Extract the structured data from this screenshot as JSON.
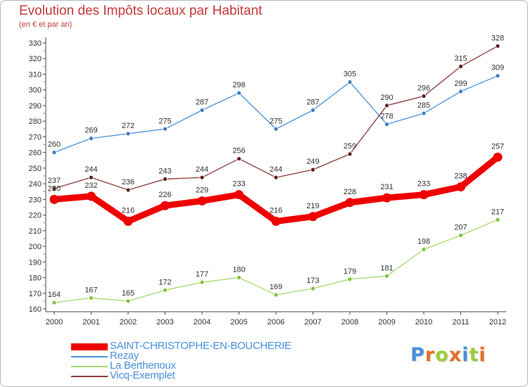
{
  "header": {
    "title": "Evolution des Impôts locaux par Habitant",
    "subtitle": "(en € et par an)"
  },
  "brand": {
    "letters": [
      "P",
      "r",
      "o",
      "x",
      "i",
      "t",
      "i"
    ],
    "colors": [
      "#4a8fd4",
      "#e8702a",
      "#9ccf3a",
      "#e8702a",
      "#4a8fd4",
      "#9ccf3a",
      "#e8702a"
    ]
  },
  "chart_data": {
    "type": "line",
    "title": "Evolution des Impôts locaux par Habitant",
    "subtitle": "(en € et par an)",
    "xlabel": "",
    "ylabel": "",
    "x": [
      "2000",
      "2001",
      "2002",
      "2003",
      "2004",
      "2005",
      "2006",
      "2007",
      "2008",
      "2009",
      "2010",
      "2011",
      "2012"
    ],
    "ylim": [
      160,
      330
    ],
    "yticks": [
      160,
      170,
      180,
      190,
      200,
      210,
      220,
      230,
      240,
      250,
      260,
      270,
      280,
      290,
      300,
      310,
      320,
      330
    ],
    "grid": false,
    "legend_position": "bottom-left",
    "series": [
      {
        "name": "Rezay",
        "color": "#4a90d9",
        "marker_color": "#3a7cc4",
        "values": [
          260,
          269,
          272,
          275,
          287,
          298,
          275,
          287,
          305,
          278,
          285,
          299,
          309
        ]
      },
      {
        "name": "La Berthenoux",
        "color": "#a6d96a",
        "marker_color": "#7fc43a",
        "values": [
          164,
          167,
          165,
          172,
          177,
          180,
          169,
          173,
          179,
          181,
          198,
          207,
          217
        ]
      },
      {
        "name": "Vicq-Exemplet",
        "color": "#8b3a3a",
        "marker_color": "#5e1f1f",
        "values": [
          237,
          244,
          236,
          243,
          244,
          256,
          244,
          249,
          259,
          290,
          296,
          315,
          328
        ]
      },
      {
        "name": "SAINT-CHRISTOPHE-EN-BOUCHERIE",
        "color": "#ee0000",
        "marker_color": "#ee0000",
        "values": [
          230,
          232,
          216,
          226,
          229,
          233,
          216,
          219,
          228,
          231,
          233,
          238,
          257
        ]
      }
    ]
  },
  "legend": [
    {
      "name": "SAINT-CHRISTOPHE-EN-BOUCHERIE",
      "color": "#ee0000"
    },
    {
      "name": "Rezay",
      "color": "#4a90d9"
    },
    {
      "name": "La Berthenoux",
      "color": "#a6d96a"
    },
    {
      "name": "Vicq-Exemplet",
      "color": "#8b3a3a"
    }
  ]
}
